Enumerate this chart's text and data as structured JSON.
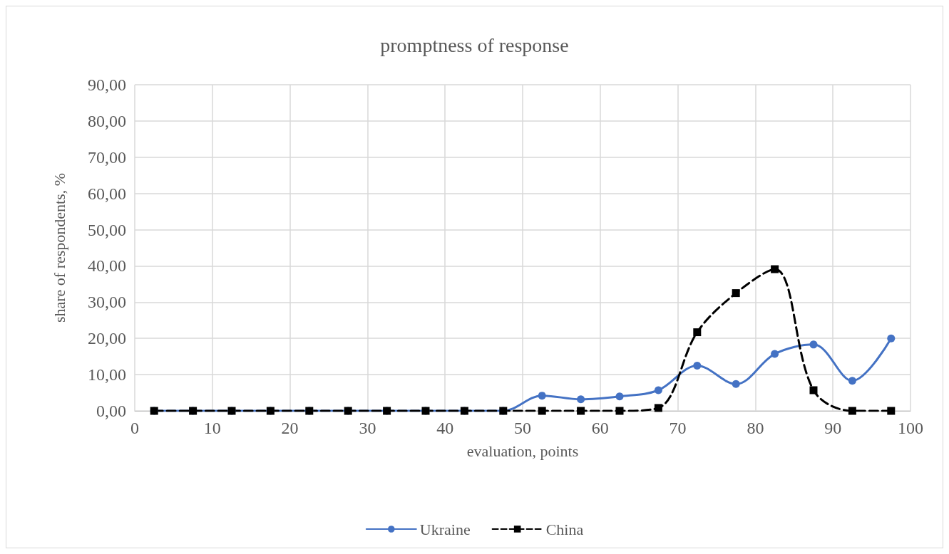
{
  "chart_data": {
    "type": "line",
    "title": "promptness of response",
    "xlabel": "evaluation, points",
    "ylabel": "share of respondents, %",
    "x": [
      2.5,
      7.5,
      12.5,
      17.5,
      22.5,
      27.5,
      32.5,
      37.5,
      42.5,
      47.5,
      52.5,
      57.5,
      62.5,
      67.5,
      72.5,
      77.5,
      82.5,
      87.5,
      92.5,
      97.5
    ],
    "series": [
      {
        "name": "Ukraine",
        "color": "#4472c4",
        "marker": "circle",
        "line_style": "solid",
        "values": [
          0,
          0,
          0,
          0,
          0,
          0,
          0,
          0,
          0,
          0,
          4.2,
          3.2,
          4.0,
          5.7,
          12.5,
          7.4,
          15.7,
          18.3,
          8.3,
          20.0
        ]
      },
      {
        "name": "China",
        "color": "#000000",
        "marker": "square",
        "line_style": "dashed",
        "values": [
          0,
          0,
          0,
          0,
          0,
          0,
          0,
          0,
          0,
          0,
          0,
          0,
          0,
          0.8,
          21.7,
          32.5,
          39.1,
          5.7,
          0,
          0
        ]
      }
    ],
    "xlim": [
      0,
      100
    ],
    "xticks": [
      0,
      10,
      20,
      30,
      40,
      50,
      60,
      70,
      80,
      90,
      100
    ],
    "ylim": [
      0,
      90
    ],
    "yticks": [
      {
        "value": 0,
        "label": "0,00"
      },
      {
        "value": 10,
        "label": "10,00"
      },
      {
        "value": 20,
        "label": "20,00"
      },
      {
        "value": 30,
        "label": "30,00"
      },
      {
        "value": 40,
        "label": "40,00"
      },
      {
        "value": 50,
        "label": "50,00"
      },
      {
        "value": 60,
        "label": "60,00"
      },
      {
        "value": 70,
        "label": "70,00"
      },
      {
        "value": 80,
        "label": "80,00"
      },
      {
        "value": 90,
        "label": "90,00"
      }
    ],
    "grid": true,
    "legend": "bottom"
  }
}
